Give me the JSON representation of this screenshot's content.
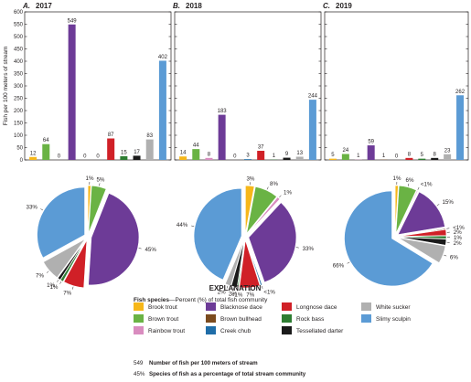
{
  "chart_data": {
    "type": "bar",
    "ylabel": "Fish per 100 meters of stream",
    "ylim": [
      0,
      600
    ],
    "y_ticks": [
      0,
      50,
      100,
      150,
      200,
      250,
      300,
      350,
      400,
      450,
      500,
      550,
      600
    ],
    "species": [
      "Brook trout",
      "Brown trout",
      "Rainbow trout",
      "Blacknose dace",
      "Brown bullhead",
      "Creek chub",
      "Longnose dace",
      "Rock bass",
      "Tessellated darter",
      "White sucker",
      "Slimy sculpin"
    ],
    "colors": [
      "#f6b71a",
      "#6ab344",
      "#d98cbf",
      "#6d3b97",
      "#7b4b1e",
      "#1f6da8",
      "#d02027",
      "#2e7d32",
      "#1a1a1a",
      "#b0b0b0",
      "#5b9bd5"
    ],
    "panels": [
      {
        "letter": "A.",
        "year": "2017",
        "values": [
          12,
          64,
          0,
          549,
          0,
          0,
          87,
          15,
          17,
          83,
          402
        ],
        "value_labels": [
          "12",
          "64",
          "0",
          "549",
          "0",
          "0",
          "87",
          "15",
          "17",
          "83",
          "402"
        ],
        "pie": {
          "slices": [
            {
              "species": "Brook trout",
              "percent": 1,
              "label": "1%"
            },
            {
              "species": "Brown trout",
              "percent": 5,
              "label": "5%"
            },
            {
              "species": "Blacknose dace",
              "percent": 45,
              "label": "45%"
            },
            {
              "species": "Longnose dace",
              "percent": 7,
              "label": "7%"
            },
            {
              "species": "Rock bass",
              "percent": 1,
              "label": "1%"
            },
            {
              "species": "Tessellated darter",
              "percent": 1,
              "label": "1%"
            },
            {
              "species": "White sucker",
              "percent": 7,
              "label": "7%"
            },
            {
              "species": "Slimy sculpin",
              "percent": 33,
              "label": "33%"
            }
          ]
        }
      },
      {
        "letter": "B.",
        "year": "2018",
        "values": [
          14,
          44,
          8,
          183,
          0,
          3,
          37,
          1,
          9,
          13,
          244
        ],
        "value_labels": [
          "14",
          "44",
          "8",
          "183",
          "0",
          "3",
          "37",
          "1",
          "9",
          "13",
          "244"
        ],
        "pie": {
          "slices": [
            {
              "species": "Brook trout",
              "percent": 3,
              "label": "3%"
            },
            {
              "species": "Brown trout",
              "percent": 8,
              "label": "8%"
            },
            {
              "species": "Rainbow trout",
              "percent": 1,
              "label": "1%"
            },
            {
              "species": "Blacknose dace",
              "percent": 33,
              "label": "33%"
            },
            {
              "species": "Creek chub",
              "percent": 0.5,
              "label": "<1%"
            },
            {
              "species": "Longnose dace",
              "percent": 7,
              "label": "7%"
            },
            {
              "species": "Rock bass",
              "percent": 0.4,
              "label": "<1%"
            },
            {
              "species": "Tessellated darter",
              "percent": 2,
              "label": "2%"
            },
            {
              "species": "White sucker",
              "percent": 2,
              "label": "2%"
            },
            {
              "species": "Slimy sculpin",
              "percent": 44,
              "label": "44%"
            }
          ]
        }
      },
      {
        "letter": "C.",
        "year": "2019",
        "values": [
          5,
          24,
          1,
          59,
          1,
          0,
          8,
          5,
          8,
          23,
          262
        ],
        "value_labels": [
          "5",
          "24",
          "1",
          "59",
          "1",
          "0",
          "8",
          "5",
          "8",
          "23",
          "262"
        ],
        "pie": {
          "slices": [
            {
              "species": "Brook trout",
              "percent": 1,
              "label": "1%"
            },
            {
              "species": "Brown trout",
              "percent": 6,
              "label": "6%"
            },
            {
              "species": "Rainbow trout",
              "percent": 0.3,
              "label": "<1%"
            },
            {
              "species": "Blacknose dace",
              "percent": 15,
              "label": "15%"
            },
            {
              "species": "Brown bullhead",
              "percent": 0.3,
              "label": "<1%"
            },
            {
              "species": "Longnose dace",
              "percent": 2,
              "label": "2%"
            },
            {
              "species": "Rock bass",
              "percent": 1,
              "label": "1%"
            },
            {
              "species": "Tessellated darter",
              "percent": 2,
              "label": "2%"
            },
            {
              "species": "White sucker",
              "percent": 6,
              "label": "6%"
            },
            {
              "species": "Slimy sculpin",
              "percent": 66,
              "label": "66%"
            }
          ]
        }
      }
    ]
  },
  "explanation": {
    "title": "EXPLANATION",
    "subtitle_bold": "Fish species",
    "subtitle_rest": "—Percent (%) of total fish community",
    "note_count_value": "549",
    "note_count_text": "Number of fish per 100 meters of stream",
    "note_percent_value": "45%",
    "note_percent_text": "Species of fish as a percentage of total stream community"
  }
}
